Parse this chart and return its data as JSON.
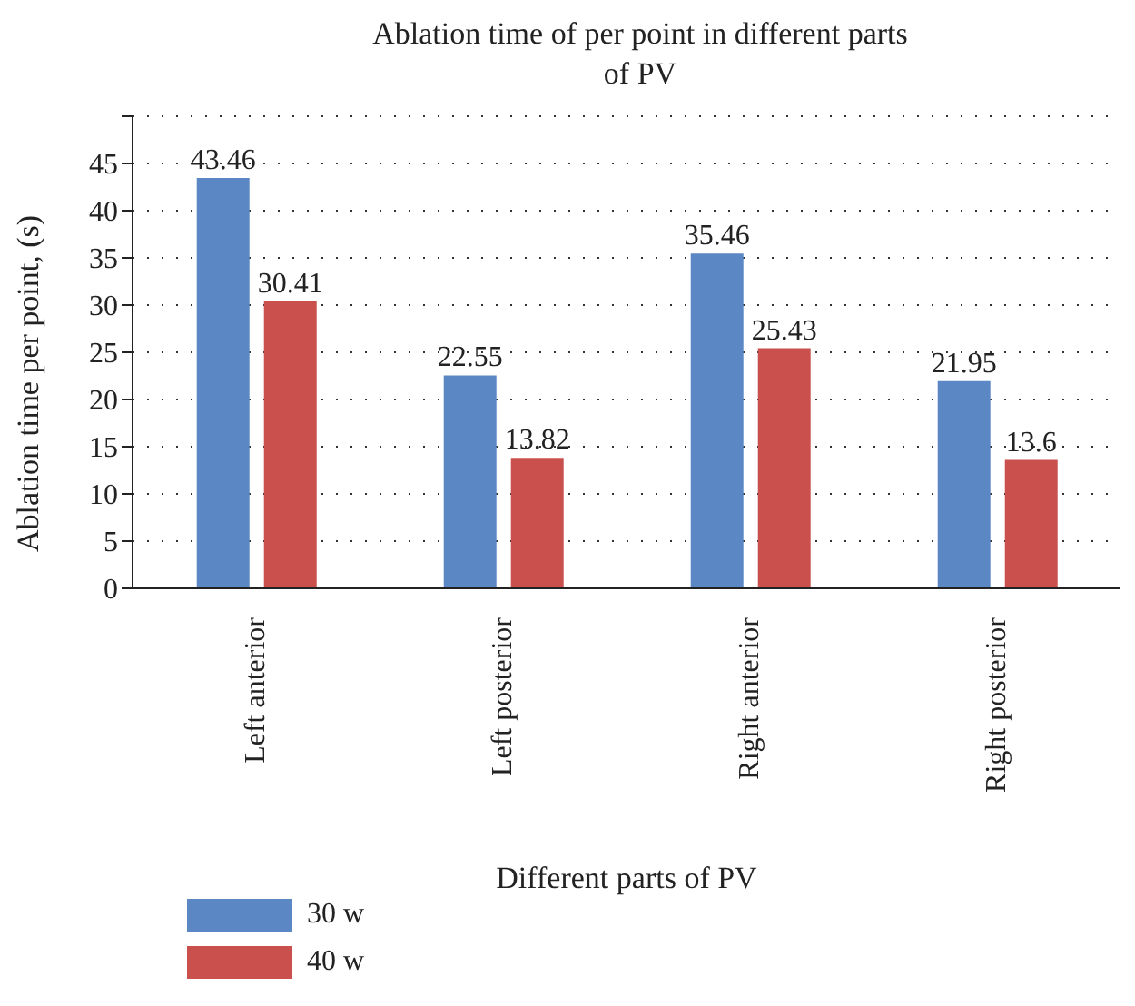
{
  "chart_data": {
    "type": "bar",
    "title": "Ablation time of per point in different parts of PV",
    "xlabel": "Different parts of PV",
    "ylabel": "Ablation time per point, (s)",
    "categories": [
      "Left anterior",
      "Left posterior",
      "Right anterior",
      "Right posterior"
    ],
    "series": [
      {
        "name": "30 w",
        "color": "#5b87c5",
        "values": [
          43.46,
          22.55,
          35.46,
          21.95
        ]
      },
      {
        "name": "40 w",
        "color": "#c9504c",
        "values": [
          30.41,
          13.82,
          25.43,
          13.6
        ]
      }
    ],
    "ylim": [
      0,
      50
    ],
    "yticks": [
      0,
      5,
      10,
      15,
      20,
      25,
      30,
      35,
      40,
      45,
      {
        "value": 50,
        "label": null
      }
    ],
    "grid": "y",
    "legend": "bottom left",
    "data_labels": true
  }
}
